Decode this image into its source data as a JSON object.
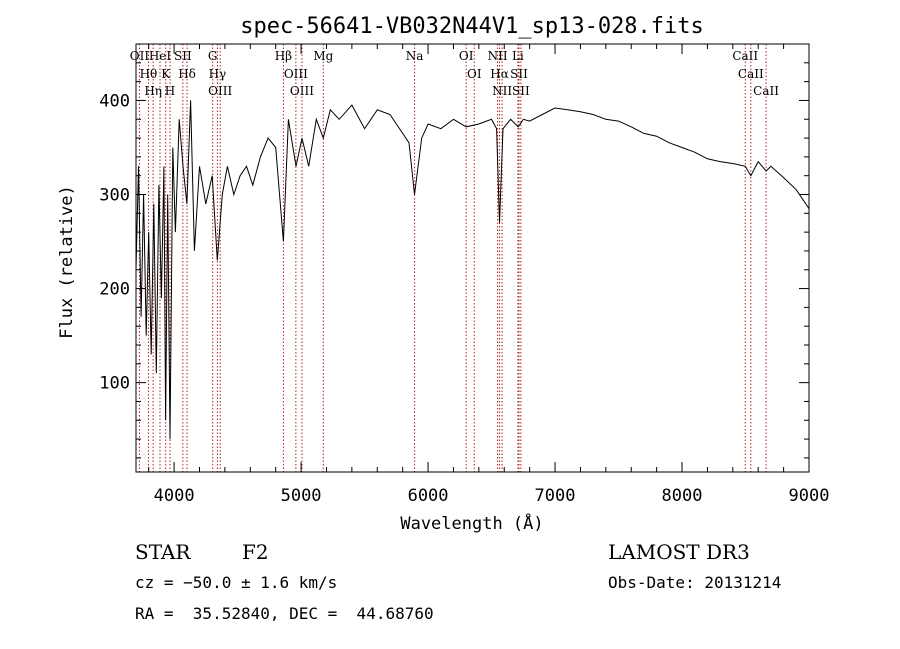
{
  "chart_data": {
    "type": "line",
    "title": "spec-56641-VB032N44V1_sp13-028.fits",
    "xlabel": "Wavelength (Å)",
    "ylabel": "Flux (relative)",
    "xlim": [
      3700,
      9000
    ],
    "ylim": [
      5,
      460
    ],
    "x_ticks": [
      4000,
      5000,
      6000,
      7000,
      8000,
      9000
    ],
    "y_ticks": [
      100,
      200,
      300,
      400
    ],
    "series": [
      {
        "name": "spectrum",
        "x": [
          3700,
          3720,
          3740,
          3760,
          3780,
          3800,
          3820,
          3840,
          3860,
          3880,
          3900,
          3920,
          3933,
          3950,
          3968,
          3990,
          4010,
          4040,
          4070,
          4101,
          4130,
          4160,
          4200,
          4250,
          4300,
          4340,
          4380,
          4420,
          4470,
          4520,
          4570,
          4620,
          4680,
          4740,
          4800,
          4861,
          4900,
          4960,
          5007,
          5060,
          5120,
          5175,
          5230,
          5300,
          5400,
          5500,
          5600,
          5700,
          5800,
          5850,
          5893,
          5950,
          6000,
          6100,
          6200,
          6300,
          6400,
          6500,
          6540,
          6563,
          6590,
          6650,
          6710,
          6750,
          6800,
          6900,
          7000,
          7100,
          7200,
          7300,
          7400,
          7500,
          7600,
          7700,
          7800,
          7900,
          8000,
          8100,
          8200,
          8300,
          8400,
          8498,
          8542,
          8600,
          8662,
          8700,
          8800,
          8900,
          9000
        ],
        "y": [
          220,
          330,
          170,
          300,
          150,
          260,
          130,
          290,
          110,
          310,
          190,
          330,
          60,
          300,
          40,
          350,
          260,
          380,
          330,
          290,
          400,
          240,
          330,
          290,
          320,
          230,
          300,
          330,
          300,
          320,
          330,
          310,
          340,
          360,
          350,
          250,
          380,
          330,
          360,
          330,
          380,
          360,
          390,
          380,
          395,
          370,
          390,
          385,
          365,
          355,
          300,
          360,
          375,
          370,
          380,
          372,
          375,
          380,
          370,
          270,
          370,
          380,
          372,
          380,
          378,
          385,
          392,
          390,
          388,
          385,
          380,
          378,
          372,
          365,
          362,
          355,
          350,
          345,
          338,
          335,
          333,
          330,
          320,
          335,
          325,
          330,
          318,
          305,
          285
        ]
      }
    ],
    "lines": [
      {
        "name": "OII",
        "x": 3727
      },
      {
        "name": "Hθ",
        "x": 3798
      },
      {
        "name": "Hη",
        "x": 3835
      },
      {
        "name": "HeI",
        "x": 3889
      },
      {
        "name": "K",
        "x": 3934
      },
      {
        "name": "H",
        "x": 3968
      },
      {
        "name": "SII",
        "x": 4069
      },
      {
        "name": "Hδ",
        "x": 4102
      },
      {
        "name": "G",
        "x": 4304
      },
      {
        "name": "Hγ",
        "x": 4341
      },
      {
        "name": "OIII",
        "x": 4363
      },
      {
        "name": "Hβ",
        "x": 4861
      },
      {
        "name": "OIII",
        "x": 4959
      },
      {
        "name": "OIII",
        "x": 5007
      },
      {
        "name": "Mg",
        "x": 5175
      },
      {
        "name": "Na",
        "x": 5894
      },
      {
        "name": "OI",
        "x": 6300
      },
      {
        "name": "OI",
        "x": 6364
      },
      {
        "name": "NII",
        "x": 6548
      },
      {
        "name": "Hα",
        "x": 6563
      },
      {
        "name": "NII",
        "x": 6583
      },
      {
        "name": "Li",
        "x": 6708
      },
      {
        "name": "SII",
        "x": 6716
      },
      {
        "name": "SII",
        "x": 6731
      },
      {
        "name": "CaII",
        "x": 8498
      },
      {
        "name": "CaII",
        "x": 8542
      },
      {
        "name": "CaII",
        "x": 8662
      }
    ]
  },
  "info": {
    "class_label": "STAR",
    "subclass_label": "F2",
    "survey": "LAMOST DR3",
    "cz": "cz = −50.0 ± 1.6 km/s",
    "obs_date": "Obs-Date: 20131214",
    "coords": "RA =  35.52840, DEC =  44.68760"
  },
  "colors": {
    "line": "#000000",
    "marker": "#b22222"
  }
}
